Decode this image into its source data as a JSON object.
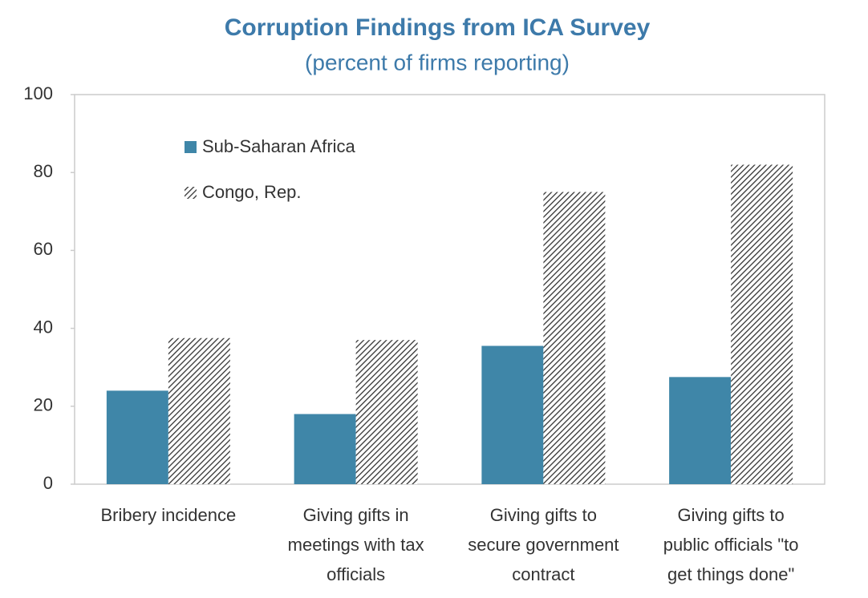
{
  "chart_data": {
    "type": "bar",
    "title": "Corruption Findings from ICA Survey",
    "subtitle": "(percent of firms reporting)",
    "categories": [
      [
        "Bribery incidence"
      ],
      [
        "Giving  gifts in",
        "meetings with tax",
        "officials"
      ],
      [
        "Giving gifts to",
        "secure government",
        "contract"
      ],
      [
        "Giving gifts to",
        "public officials \"to",
        "get things done\""
      ]
    ],
    "series": [
      {
        "name": "Sub-Saharan Africa",
        "color": "#3f86a8",
        "values": [
          24,
          18,
          35.5,
          27.5
        ]
      },
      {
        "name": "Congo, Rep.",
        "color": "#333333",
        "pattern": "diagonal-hatch",
        "values": [
          37.5,
          37,
          75,
          82
        ]
      }
    ],
    "ylim": [
      0,
      100
    ],
    "yticks": [
      0,
      20,
      40,
      60,
      80,
      100
    ],
    "legend": "upper left"
  }
}
